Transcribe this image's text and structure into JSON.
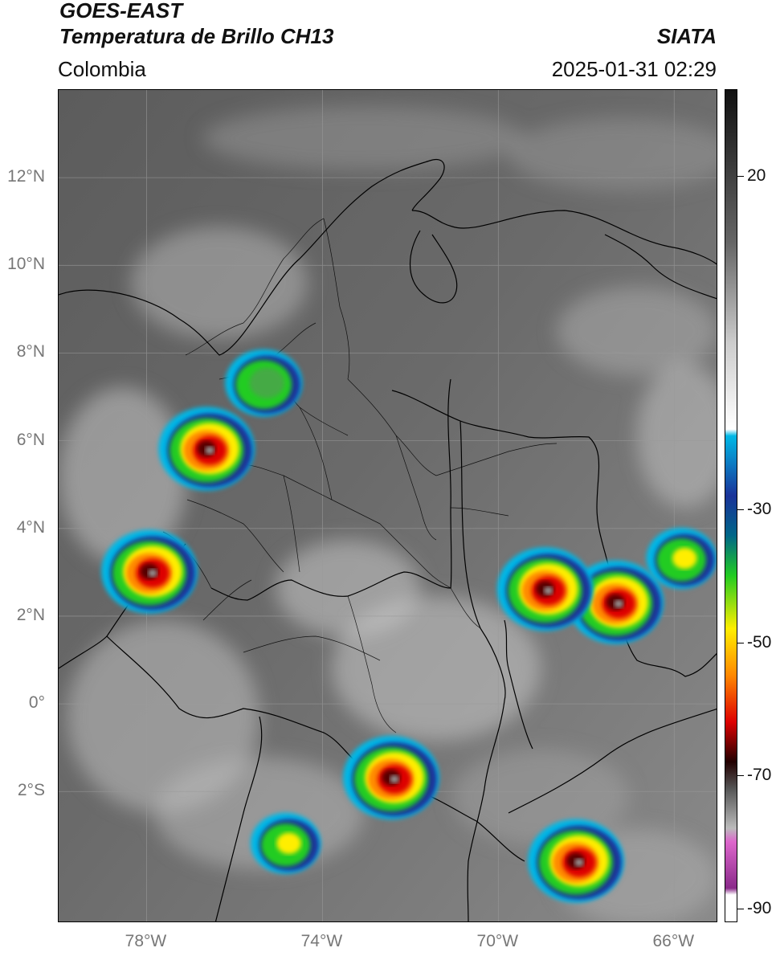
{
  "header": {
    "satellite": "GOES-EAST",
    "product": "Temperatura de Brillo CH13",
    "region": "Colombia",
    "organization": "SIATA",
    "timestamp": "2025-01-31 02:29"
  },
  "map": {
    "lon_range": [
      -80,
      -65
    ],
    "lat_range": [
      -5,
      14
    ],
    "lat_labels": [
      {
        "value": 12,
        "text": "12°N"
      },
      {
        "value": 10,
        "text": "10°N"
      },
      {
        "value": 8,
        "text": "8°N"
      },
      {
        "value": 6,
        "text": "6°N"
      },
      {
        "value": 4,
        "text": "4°N"
      },
      {
        "value": 2,
        "text": "2°N"
      },
      {
        "value": 0,
        "text": "0°"
      },
      {
        "value": -2,
        "text": "2°S"
      }
    ],
    "lon_labels": [
      {
        "value": -78,
        "text": "78°W"
      },
      {
        "value": -74,
        "text": "74°W"
      },
      {
        "value": -70,
        "text": "70°W"
      },
      {
        "value": -66,
        "text": "66°W"
      }
    ],
    "gridlines": true,
    "cloud_systems": [
      {
        "lon": -76.6,
        "lat": 5.8,
        "intensity": "very-cold"
      },
      {
        "lon": -77.9,
        "lat": 3.0,
        "intensity": "very-cold"
      },
      {
        "lon": -75.3,
        "lat": 7.3,
        "intensity": "cold"
      },
      {
        "lon": -72.4,
        "lat": -1.7,
        "intensity": "very-cold"
      },
      {
        "lon": -67.3,
        "lat": 2.3,
        "intensity": "very-cold"
      },
      {
        "lon": -68.9,
        "lat": 2.6,
        "intensity": "very-cold"
      },
      {
        "lon": -68.2,
        "lat": -3.6,
        "intensity": "very-cold"
      },
      {
        "lon": -74.8,
        "lat": -3.2,
        "intensity": "moderate"
      },
      {
        "lon": -65.8,
        "lat": 3.3,
        "intensity": "moderate"
      }
    ]
  },
  "colorbar": {
    "range": [
      -92,
      33
    ],
    "labels": [
      {
        "value": 20,
        "text": "20"
      },
      {
        "value": -30,
        "text": "-30"
      },
      {
        "value": -50,
        "text": "-50"
      },
      {
        "value": -70,
        "text": "-70"
      },
      {
        "value": -90,
        "text": "-90"
      }
    ],
    "colors": {
      "warm_top": "#111111",
      "cold_cyan": "#00b8e6",
      "cold_blue": "#1a3399",
      "green": "#22cc22",
      "yellow": "#ffee00",
      "orange": "#ff8800",
      "red": "#dd0000",
      "magenta": "#dd66cc",
      "purple": "#8a2a8a"
    }
  }
}
